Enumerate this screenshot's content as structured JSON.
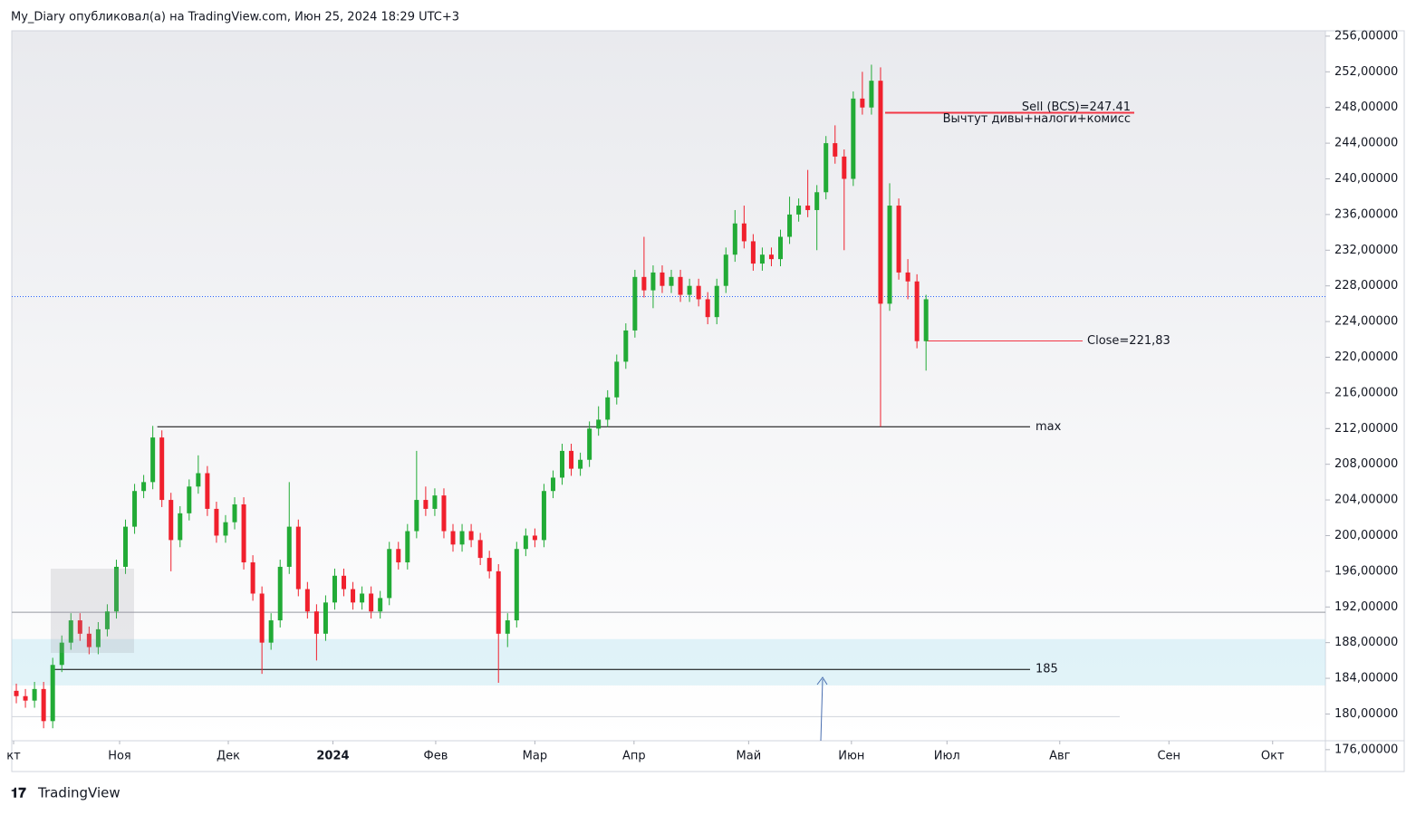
{
  "header": "My_Diary опубликовал(а) на TradingView.com, Июн 25, 2024 18:29 UTC+3",
  "footer": "TradingView",
  "chart_data": {
    "type": "candlestick",
    "up_color": "#22ab36",
    "down_color": "#f0202d",
    "xlim": [
      -0.5,
      143.9
    ],
    "xticks": [
      {
        "value": -0.3,
        "label": "кт"
      },
      {
        "value": 11.35,
        "label": "Ноя"
      },
      {
        "value": 23.3,
        "label": "Дек"
      },
      {
        "value": 34.8,
        "label": "2024"
      },
      {
        "value": 46.1,
        "label": "Фев"
      },
      {
        "value": 57,
        "label": "Мар"
      },
      {
        "value": 67.9,
        "label": "Апр"
      },
      {
        "value": 80.5,
        "label": "Май"
      },
      {
        "value": 91.8,
        "label": "Июн"
      },
      {
        "value": 102.3,
        "label": "Июл"
      },
      {
        "value": 114.7,
        "label": "Авг"
      },
      {
        "value": 126.7,
        "label": "Сен"
      },
      {
        "value": 138.1,
        "label": "Окт"
      }
    ],
    "ylim": [
      177,
      256.6
    ],
    "yticks": [
      {
        "value": 176,
        "label": "176,00000"
      },
      {
        "value": 180,
        "label": "180,00000"
      },
      {
        "value": 184,
        "label": "184,00000"
      },
      {
        "value": 188,
        "label": "188,00000"
      },
      {
        "value": 192,
        "label": "192,00000"
      },
      {
        "value": 196,
        "label": "196,00000"
      },
      {
        "value": 200,
        "label": "200,00000"
      },
      {
        "value": 204,
        "label": "204,00000"
      },
      {
        "value": 208,
        "label": "208,00000"
      },
      {
        "value": 212,
        "label": "212,00000"
      },
      {
        "value": 216,
        "label": "216,00000"
      },
      {
        "value": 220,
        "label": "220,00000"
      },
      {
        "value": 224,
        "label": "224,00000"
      },
      {
        "value": 228,
        "label": "228,00000"
      },
      {
        "value": 232,
        "label": "232,00000"
      },
      {
        "value": 236,
        "label": "236,00000"
      },
      {
        "value": 240,
        "label": "240,00000"
      },
      {
        "value": 244,
        "label": "244,00000"
      },
      {
        "value": 248,
        "label": "248,00000"
      },
      {
        "value": 252,
        "label": "252,00000"
      },
      {
        "value": 256,
        "label": "256,00000"
      }
    ],
    "open": [
      182.6,
      182.0,
      181.5,
      182.8,
      179.2,
      185.5,
      188.0,
      190.5,
      189.0,
      187.5,
      189.5,
      191.5,
      196.5,
      201.0,
      205.0,
      206.0,
      211.0,
      204.0,
      199.5,
      202.5,
      205.5,
      207.0,
      203.0,
      200.0,
      201.5,
      203.5,
      197.0,
      193.5,
      188.0,
      190.5,
      196.5,
      201.0,
      194.0,
      191.5,
      189.0,
      192.5,
      195.5,
      194.0,
      192.5,
      193.5,
      191.5,
      193.0,
      198.5,
      197.0,
      200.5,
      204.0,
      203.0,
      204.5,
      200.5,
      199.0,
      200.5,
      199.5,
      197.5,
      196.0,
      189.0,
      190.5,
      198.5,
      200.0,
      199.5,
      205.0,
      206.5,
      209.5,
      207.5,
      208.5,
      212.0,
      213.0,
      215.5,
      219.5,
      223.0,
      229.0,
      227.5,
      229.5,
      228.0,
      229.0,
      227.0,
      228.0,
      226.5,
      224.5,
      228.0,
      231.5,
      235.0,
      233.0,
      230.5,
      231.5,
      231.0,
      233.5,
      236.0,
      237.0,
      236.5,
      238.5,
      244.0,
      242.5,
      240.0,
      249.0,
      248.0,
      251.0,
      226.0,
      237.0,
      229.5,
      228.5,
      221.8
    ],
    "high": [
      183.4,
      182.8,
      183.6,
      183.6,
      186.3,
      188.8,
      191.3,
      191.3,
      189.8,
      190.3,
      192.3,
      197.3,
      201.8,
      205.8,
      206.8,
      212.3,
      211.8,
      204.8,
      203.3,
      206.3,
      209.0,
      207.8,
      203.8,
      202.3,
      204.3,
      204.3,
      197.8,
      194.3,
      191.3,
      197.3,
      206.0,
      201.8,
      194.8,
      192.3,
      193.3,
      196.3,
      196.3,
      194.8,
      194.3,
      194.3,
      193.8,
      199.3,
      199.3,
      201.3,
      209.5,
      205.5,
      205.3,
      205.3,
      201.3,
      201.3,
      201.3,
      200.3,
      198.3,
      196.8,
      191.3,
      199.3,
      200.8,
      200.8,
      205.8,
      207.3,
      210.3,
      210.3,
      209.3,
      212.8,
      214.5,
      216.3,
      220.3,
      223.8,
      229.8,
      233.5,
      230.3,
      230.3,
      229.8,
      229.8,
      228.8,
      228.8,
      227.3,
      228.8,
      232.3,
      236.5,
      237.0,
      233.8,
      232.3,
      232.3,
      234.3,
      238.0,
      237.8,
      241.0,
      239.3,
      244.8,
      246.0,
      243.3,
      249.8,
      252.0,
      252.8,
      252.5,
      239.5,
      237.8,
      231.0,
      229.3,
      227.0
    ],
    "low": [
      181.2,
      180.7,
      180.7,
      178.4,
      178.4,
      184.7,
      187.2,
      188.2,
      186.7,
      186.7,
      188.7,
      190.7,
      195.7,
      200.2,
      204.2,
      205.2,
      203.2,
      196.0,
      198.7,
      201.7,
      204.7,
      202.2,
      199.2,
      199.2,
      200.7,
      196.2,
      192.7,
      184.5,
      187.2,
      189.7,
      195.7,
      193.2,
      190.7,
      186.0,
      188.2,
      191.7,
      193.2,
      191.7,
      191.7,
      190.7,
      190.7,
      192.2,
      196.2,
      196.2,
      199.7,
      202.2,
      202.2,
      199.7,
      198.2,
      198.2,
      198.7,
      196.7,
      195.2,
      183.5,
      187.5,
      189.7,
      197.7,
      198.7,
      198.7,
      204.2,
      205.7,
      206.7,
      206.7,
      207.7,
      211.2,
      212.2,
      214.7,
      218.7,
      222.2,
      226.7,
      225.5,
      227.2,
      227.2,
      226.2,
      226.2,
      225.7,
      223.7,
      223.7,
      227.2,
      230.7,
      232.2,
      229.7,
      229.7,
      230.2,
      230.2,
      232.7,
      235.2,
      235.7,
      232.0,
      237.7,
      241.7,
      232.0,
      239.2,
      247.2,
      247.2,
      212.2,
      225.2,
      228.7,
      226.5,
      221.0,
      218.5
    ],
    "close": [
      182.0,
      181.5,
      182.8,
      179.2,
      185.5,
      188.0,
      190.5,
      189.0,
      187.5,
      189.5,
      191.5,
      196.5,
      201.0,
      205.0,
      206.0,
      211.0,
      204.0,
      199.5,
      202.5,
      205.5,
      207.0,
      203.0,
      200.0,
      201.5,
      203.5,
      197.0,
      193.5,
      188.0,
      190.5,
      196.5,
      201.0,
      194.0,
      191.5,
      189.0,
      192.5,
      195.5,
      194.0,
      192.5,
      193.5,
      191.5,
      193.0,
      198.5,
      197.0,
      200.5,
      204.0,
      203.0,
      204.5,
      200.5,
      199.0,
      200.5,
      199.5,
      197.5,
      196.0,
      189.0,
      190.5,
      198.5,
      200.0,
      199.5,
      205.0,
      206.5,
      209.5,
      207.5,
      208.5,
      212.0,
      213.0,
      215.5,
      219.5,
      223.0,
      229.0,
      227.5,
      229.5,
      228.0,
      229.0,
      227.0,
      228.0,
      226.5,
      224.5,
      228.0,
      231.5,
      235.0,
      233.0,
      230.5,
      231.5,
      231.0,
      233.5,
      236.0,
      237.0,
      236.5,
      238.5,
      244.0,
      242.5,
      240.0,
      249.0,
      248.0,
      251.0,
      226.0,
      237.0,
      229.5,
      228.5,
      221.8,
      226.5
    ],
    "zone": [
      183.2,
      188.4
    ],
    "last_price": 226.8,
    "levels": [
      {
        "value": 247.41,
        "label": "Sell (BCS)=247.41",
        "note": "Вычтут дивы+налоги+комисс",
        "color": "#f23645"
      },
      {
        "value": 221.83,
        "label": "Close=221,83",
        "color": "#f23645"
      },
      {
        "value": 212.2,
        "label": "max",
        "color": "#000000"
      },
      {
        "value": 185,
        "label": "185",
        "color": "#000000"
      },
      {
        "value": 191.4,
        "color": "#9598a1"
      },
      {
        "value": 179.7,
        "color": "#d1d4dc"
      }
    ]
  }
}
